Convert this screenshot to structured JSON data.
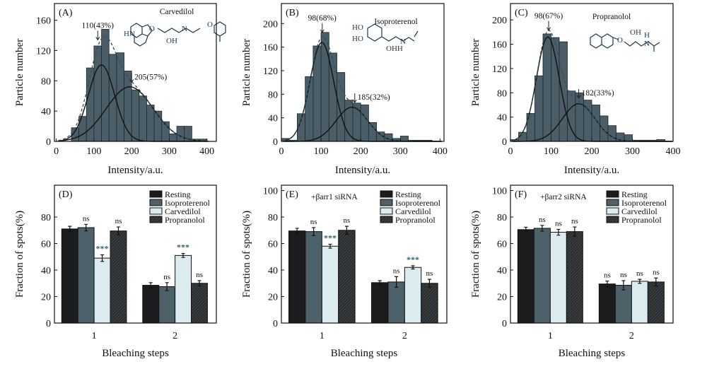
{
  "colors": {
    "histogram_bar": "#4b5d67",
    "fit_line": "#111111",
    "fit_sum": "#2f4f5f",
    "molecule": "#1c3b4a",
    "resting": "#1a1c1d",
    "isoproterenol": "#4d616b",
    "carvedilol": "#dcebef",
    "propranolol": "#2a2e30",
    "significance_star": "#3b6473"
  },
  "chart_data": [
    {
      "panel": "(A)",
      "type": "bar",
      "subtype": "histogram",
      "compound": "Carvedilol",
      "xlabel": "Intensity/a.u.",
      "ylabel": "Particle number",
      "xlim": [
        -5,
        425
      ],
      "ylim": [
        0,
        182
      ],
      "xticks": [
        0,
        100,
        200,
        300,
        400
      ],
      "yticks": [
        0,
        40,
        80,
        120,
        160
      ],
      "bin_start": 40,
      "bin_width": 20,
      "counts": [
        18,
        33,
        97,
        126,
        148,
        115,
        117,
        93,
        68,
        60,
        48,
        40,
        26,
        10,
        20,
        20,
        3,
        3
      ],
      "fits": [
        {
          "mean": 120,
          "sigma": 35,
          "amplitude": 101
        },
        {
          "mean": 195,
          "sigma": 62,
          "amplitude": 72
        }
      ],
      "annotations": [
        {
          "text": "110(43%)",
          "x": 110,
          "y": 134,
          "label_side": "above"
        },
        {
          "text": "205(57%)",
          "x": 200,
          "y": 78,
          "label_side": "right"
        }
      ],
      "grid": false
    },
    {
      "panel": "(B)",
      "type": "bar",
      "subtype": "histogram",
      "compound": "Isoproterenol",
      "xlabel": "Intensity/a.u.",
      "ylabel": "Particle number",
      "xlim": [
        0,
        410
      ],
      "ylim": [
        0,
        234
      ],
      "xticks": [
        0,
        100,
        200,
        300,
        400
      ],
      "yticks": [
        0,
        40,
        80,
        120,
        160,
        200
      ],
      "bin_start": 0,
      "bin_width": 20,
      "counts": [
        5,
        2,
        47,
        110,
        162,
        185,
        150,
        117,
        70,
        65,
        62,
        32,
        16,
        13,
        5,
        9,
        2,
        2,
        2,
        0
      ],
      "fits": [
        {
          "mean": 102,
          "sigma": 30,
          "amplitude": 168
        },
        {
          "mean": 178,
          "sigma": 40,
          "amplitude": 58
        }
      ],
      "annotations": [
        {
          "text": "98(68%)",
          "x": 103,
          "y": 185,
          "label_side": "above"
        },
        {
          "text": "185(32%)",
          "x": 185,
          "y": 66,
          "label_side": "right"
        }
      ],
      "grid": false
    },
    {
      "panel": "(C)",
      "type": "bar",
      "subtype": "histogram",
      "compound": "Propranolol",
      "xlabel": "Intensity/a.u.",
      "ylabel": "Particle number",
      "xlim": [
        0,
        400
      ],
      "ylim": [
        0,
        227
      ],
      "xticks": [
        0,
        100,
        200,
        300,
        400
      ],
      "yticks": [
        0,
        40,
        80,
        120,
        160,
        200
      ],
      "bin_start": 0,
      "bin_width": 20,
      "counts": [
        3,
        15,
        46,
        108,
        177,
        171,
        164,
        83,
        80,
        68,
        60,
        42,
        26,
        14,
        11,
        2,
        2,
        2,
        3,
        0
      ],
      "fits": [
        {
          "mean": 92,
          "sigma": 28,
          "amplitude": 172
        },
        {
          "mean": 168,
          "sigma": 40,
          "amplitude": 62
        }
      ],
      "annotations": [
        {
          "text": "98(67%)",
          "x": 94,
          "y": 183,
          "label_side": "above"
        },
        {
          "text": "182(33%)",
          "x": 168,
          "y": 71,
          "label_side": "right"
        }
      ],
      "grid": false
    },
    {
      "panel": "(D)",
      "type": "bar",
      "condition": "",
      "xlabel": "Bleaching steps",
      "ylabel": "Fraction of spots(%)",
      "categories": [
        "1",
        "2"
      ],
      "ylim": [
        0,
        104
      ],
      "yticks": [
        0,
        20,
        40,
        60,
        80
      ],
      "legend": "top-right",
      "series": [
        {
          "name": "Resting",
          "values": [
            71,
            28.5
          ],
          "errors": [
            2,
            2
          ],
          "significance": [
            "",
            ""
          ]
        },
        {
          "name": "Isoproterenol",
          "values": [
            72,
            27.5
          ],
          "errors": [
            2.5,
            3
          ],
          "significance": [
            "ns",
            "ns"
          ]
        },
        {
          "name": "Carvedilol",
          "values": [
            49,
            51
          ],
          "errors": [
            2.5,
            1.5
          ],
          "significance": [
            "***",
            "***"
          ]
        },
        {
          "name": "Propranolol",
          "values": [
            69.5,
            30
          ],
          "errors": [
            3,
            2
          ],
          "significance": [
            "ns",
            "ns"
          ]
        }
      ]
    },
    {
      "panel": "(E)",
      "type": "bar",
      "condition": "+βarr1 siRNA",
      "xlabel": "Bleaching steps",
      "ylabel": "Fraction of spots(%)",
      "categories": [
        "1",
        "2"
      ],
      "ylim": [
        0,
        104
      ],
      "yticks": [
        0,
        20,
        40,
        60,
        80,
        100
      ],
      "legend": "top-right",
      "series": [
        {
          "name": "Resting",
          "values": [
            69.5,
            30.5
          ],
          "errors": [
            2,
            1.5
          ],
          "significance": [
            "",
            ""
          ]
        },
        {
          "name": "Isoproterenol",
          "values": [
            69,
            31
          ],
          "errors": [
            3,
            4
          ],
          "significance": [
            "ns",
            "ns"
          ]
        },
        {
          "name": "Carvedilol",
          "values": [
            58,
            42
          ],
          "errors": [
            1.5,
            1.2
          ],
          "significance": [
            "***",
            "***"
          ]
        },
        {
          "name": "Propranolol",
          "values": [
            70,
            30
          ],
          "errors": [
            3,
            3
          ],
          "significance": [
            "ns",
            "ns"
          ]
        }
      ]
    },
    {
      "panel": "(F)",
      "type": "bar",
      "condition": "+βarr2 siRNA",
      "xlabel": "Bleaching steps",
      "ylabel": "Fraction of spots(%)",
      "categories": [
        "1",
        "2"
      ],
      "ylim": [
        0,
        104
      ],
      "yticks": [
        0,
        20,
        40,
        60,
        80,
        100
      ],
      "legend": "top-right",
      "series": [
        {
          "name": "Resting",
          "values": [
            70.5,
            29.5
          ],
          "errors": [
            1.8,
            2.2
          ],
          "significance": [
            "",
            "ns"
          ]
        },
        {
          "name": "Isoproterenol",
          "values": [
            71.5,
            28.5
          ],
          "errors": [
            2.2,
            3.5
          ],
          "significance": [
            "ns",
            "ns"
          ]
        },
        {
          "name": "Carvedilol",
          "values": [
            68.5,
            31.5
          ],
          "errors": [
            2.2,
            1.5
          ],
          "significance": [
            "ns",
            "ns"
          ]
        },
        {
          "name": "Propranolol",
          "values": [
            69,
            31
          ],
          "errors": [
            3.5,
            3
          ],
          "significance": [
            "ns",
            "ns"
          ]
        }
      ]
    }
  ]
}
